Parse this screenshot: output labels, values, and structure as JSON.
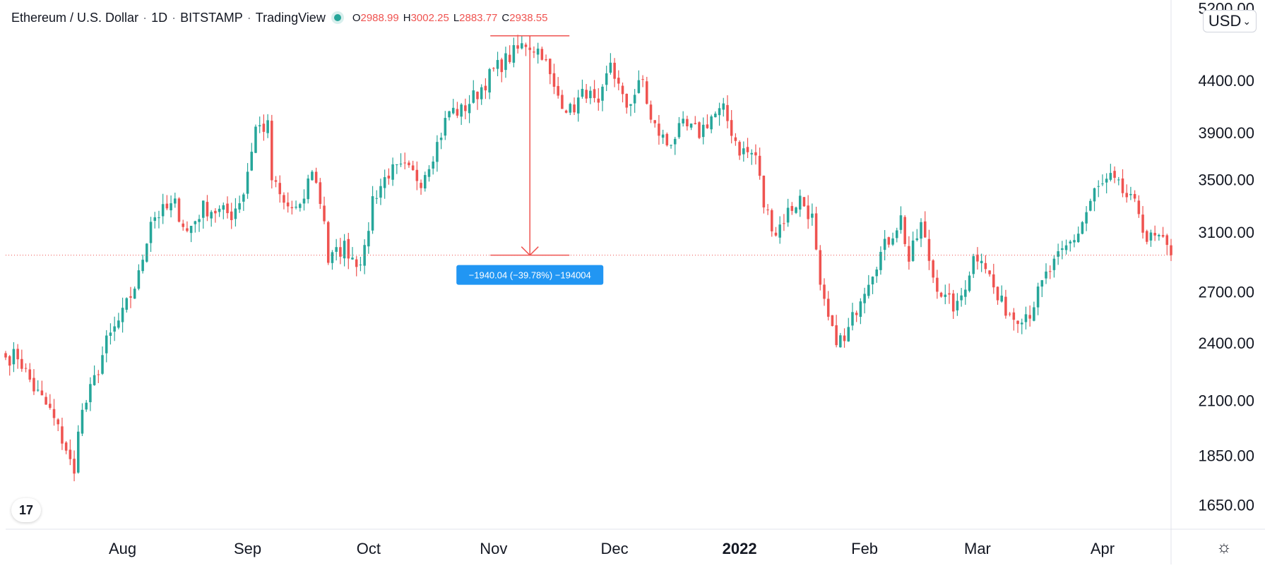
{
  "header": {
    "symbol": "Ethereum / U.S. Dollar",
    "interval": "1D",
    "exchange": "BITSTAMP",
    "source": "TradingView",
    "open_label": "O",
    "open": "2988.99",
    "high_label": "H",
    "high": "3002.25",
    "low_label": "L",
    "low": "2883.77",
    "close_label": "C",
    "close": "2938.55"
  },
  "currency": {
    "label": "USD",
    "chevron": "⌄"
  },
  "logo_text": "17",
  "settings_icon": "gear-icon",
  "colors": {
    "up": "#26a69a",
    "down": "#ef5350",
    "measure": "#ef5350",
    "label_bg": "#2196f3"
  },
  "chart_data": {
    "type": "candlestick",
    "y_axis": {
      "scale": "log",
      "range": [
        1560,
        5300
      ],
      "ticks": [
        "1650.00",
        "1850.00",
        "2100.00",
        "2400.00",
        "2700.00",
        "3100.00",
        "3500.00",
        "3900.00",
        "4400.00",
        "5200.00"
      ]
    },
    "x_axis": {
      "start": "2021-07-03",
      "end": "2022-04-18",
      "ticks": [
        {
          "label": "Aug",
          "date": "2021-08-01"
        },
        {
          "label": "Sep",
          "date": "2021-09-01"
        },
        {
          "label": "Oct",
          "date": "2021-10-01"
        },
        {
          "label": "Nov",
          "date": "2021-11-01"
        },
        {
          "label": "Dec",
          "date": "2021-12-01"
        },
        {
          "label": "2022",
          "date": "2022-01-01",
          "bold": true
        },
        {
          "label": "Feb",
          "date": "2022-02-01"
        },
        {
          "label": "Mar",
          "date": "2022-03-01"
        },
        {
          "label": "Apr",
          "date": "2022-04-01"
        }
      ]
    },
    "last_price": 2938.55,
    "price_path": [
      [
        "2021-07-03",
        2320
      ],
      [
        "2021-07-06",
        2330
      ],
      [
        "2021-07-10",
        2160
      ],
      [
        "2021-07-14",
        2050
      ],
      [
        "2021-07-18",
        1880
      ],
      [
        "2021-07-20",
        1760
      ],
      [
        "2021-07-21",
        1990
      ],
      [
        "2021-07-25",
        2200
      ],
      [
        "2021-07-28",
        2400
      ],
      [
        "2021-08-01",
        2560
      ],
      [
        "2021-08-05",
        2800
      ],
      [
        "2021-08-08",
        3200
      ],
      [
        "2021-08-11",
        3250
      ],
      [
        "2021-08-14",
        3300
      ],
      [
        "2021-08-17",
        3100
      ],
      [
        "2021-08-21",
        3280
      ],
      [
        "2021-08-25",
        3250
      ],
      [
        "2021-08-28",
        3230
      ],
      [
        "2021-08-31",
        3400
      ],
      [
        "2021-09-03",
        3950
      ],
      [
        "2021-09-06",
        3950
      ],
      [
        "2021-09-07",
        3500
      ],
      [
        "2021-09-10",
        3300
      ],
      [
        "2021-09-14",
        3250
      ],
      [
        "2021-09-17",
        3600
      ],
      [
        "2021-09-20",
        3200
      ],
      [
        "2021-09-21",
        2900
      ],
      [
        "2021-09-25",
        3000
      ],
      [
        "2021-09-28",
        2900
      ],
      [
        "2021-09-30",
        2950
      ],
      [
        "2021-10-02",
        3350
      ],
      [
        "2021-10-06",
        3560
      ],
      [
        "2021-10-10",
        3580
      ],
      [
        "2021-10-14",
        3500
      ],
      [
        "2021-10-18",
        3800
      ],
      [
        "2021-10-21",
        4100
      ],
      [
        "2021-10-24",
        4100
      ],
      [
        "2021-10-28",
        4280
      ],
      [
        "2021-11-01",
        4500
      ],
      [
        "2021-11-05",
        4650
      ],
      [
        "2021-11-09",
        4800
      ],
      [
        "2021-11-13",
        4700
      ],
      [
        "2021-11-16",
        4300
      ],
      [
        "2021-11-20",
        4100
      ],
      [
        "2021-11-24",
        4300
      ],
      [
        "2021-11-27",
        4100
      ],
      [
        "2021-11-30",
        4600
      ],
      [
        "2021-12-03",
        4200
      ],
      [
        "2021-12-04",
        4150
      ],
      [
        "2021-12-08",
        4400
      ],
      [
        "2021-12-10",
        4000
      ],
      [
        "2021-12-14",
        3800
      ],
      [
        "2021-12-18",
        3950
      ],
      [
        "2021-12-22",
        3900
      ],
      [
        "2021-12-25",
        4050
      ],
      [
        "2021-12-28",
        4100
      ],
      [
        "2022-01-01",
        3750
      ],
      [
        "2022-01-05",
        3700
      ],
      [
        "2022-01-07",
        3300
      ],
      [
        "2022-01-10",
        3100
      ],
      [
        "2022-01-13",
        3250
      ],
      [
        "2022-01-16",
        3350
      ],
      [
        "2022-01-19",
        3200
      ],
      [
        "2022-01-21",
        2700
      ],
      [
        "2022-01-24",
        2450
      ],
      [
        "2022-01-27",
        2400
      ],
      [
        "2022-01-31",
        2680
      ],
      [
        "2022-02-04",
        2900
      ],
      [
        "2022-02-08",
        3100
      ],
      [
        "2022-02-10",
        3200
      ],
      [
        "2022-02-12",
        2900
      ],
      [
        "2022-02-15",
        3150
      ],
      [
        "2022-02-18",
        2800
      ],
      [
        "2022-02-21",
        2650
      ],
      [
        "2022-02-24",
        2600
      ],
      [
        "2022-02-28",
        2920
      ],
      [
        "2022-03-02",
        2950
      ],
      [
        "2022-03-06",
        2650
      ],
      [
        "2022-03-10",
        2550
      ],
      [
        "2022-03-14",
        2580
      ],
      [
        "2022-03-18",
        2800
      ],
      [
        "2022-03-22",
        2950
      ],
      [
        "2022-03-26",
        3100
      ],
      [
        "2022-03-30",
        3400
      ],
      [
        "2022-04-03",
        3500
      ],
      [
        "2022-04-06",
        3400
      ],
      [
        "2022-04-10",
        3250
      ],
      [
        "2022-04-12",
        3050
      ],
      [
        "2022-04-15",
        3050
      ],
      [
        "2022-04-18",
        2938.55
      ]
    ],
    "measurement": {
      "from_date": "2021-11-10",
      "from_price": 4878.59,
      "to_price": 2938.55,
      "label": "−1940.04 (−39.78%) −194004"
    }
  }
}
